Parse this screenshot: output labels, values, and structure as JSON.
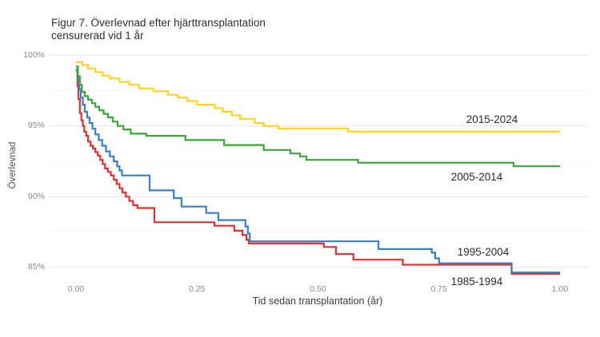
{
  "title": {
    "line1": "Figur 7. Överlevnad efter hjärttransplantation",
    "line2": "censurerad vid 1 år"
  },
  "chart_data": {
    "type": "line",
    "subtype": "kaplan-meier-step",
    "title": "Figur 7. Överlevnad efter hjärttransplantation censurerad vid 1 år",
    "xlabel": "Tid sedan transplantation (år)",
    "ylabel": "Överlevnad",
    "xlim": [
      0,
      1
    ],
    "ylim": [
      84.3,
      100.3
    ],
    "grid": "on",
    "legend_position": "inline-labels-right",
    "xticks": {
      "values": [
        0,
        0.25,
        0.5,
        0.75,
        1.0
      ],
      "labels": [
        "0.00",
        "0.25",
        "0.50",
        "0.75",
        "1.00"
      ]
    },
    "yticks": {
      "values": [
        100,
        95,
        90,
        85
      ],
      "labels": [
        "100%",
        "95%",
        "90%",
        "85%"
      ]
    },
    "minor_gridlines": [
      97.5,
      92.5,
      87.5
    ],
    "colors": {
      "grid_major": "#e6e6e6",
      "grid_minor": "#f4f4f4"
    },
    "series": [
      {
        "name": "1985-1994",
        "color": "#e03131",
        "points": [
          [
            0,
            98.9
          ],
          [
            0.003,
            97.8
          ],
          [
            0.005,
            96.9
          ],
          [
            0.008,
            95.9
          ],
          [
            0.011,
            95.4
          ],
          [
            0.014,
            95.0
          ],
          [
            0.017,
            94.6
          ],
          [
            0.021,
            94.3
          ],
          [
            0.025,
            93.9
          ],
          [
            0.03,
            93.6
          ],
          [
            0.035,
            93.4
          ],
          [
            0.04,
            93.15
          ],
          [
            0.045,
            92.9
          ],
          [
            0.05,
            92.6
          ],
          [
            0.055,
            92.3
          ],
          [
            0.06,
            92.0
          ],
          [
            0.066,
            91.75
          ],
          [
            0.072,
            91.5
          ],
          [
            0.078,
            91.2
          ],
          [
            0.084,
            90.9
          ],
          [
            0.09,
            90.6
          ],
          [
            0.096,
            90.3
          ],
          [
            0.103,
            90.0
          ],
          [
            0.11,
            89.7
          ],
          [
            0.118,
            89.4
          ],
          [
            0.127,
            89.2
          ],
          [
            0.162,
            88.2
          ],
          [
            0.286,
            87.95
          ],
          [
            0.327,
            87.6
          ],
          [
            0.344,
            87.3
          ],
          [
            0.352,
            86.95
          ],
          [
            0.357,
            86.7
          ],
          [
            0.512,
            86.45
          ],
          [
            0.537,
            85.95
          ],
          [
            0.573,
            85.55
          ],
          [
            0.675,
            85.2
          ],
          [
            0.9,
            84.55
          ],
          [
            1.0,
            84.55
          ]
        ]
      },
      {
        "name": "1995-2004",
        "color": "#3a7fc1",
        "points": [
          [
            0,
            99.0
          ],
          [
            0.004,
            98.3
          ],
          [
            0.007,
            97.6
          ],
          [
            0.01,
            97.0
          ],
          [
            0.014,
            96.5
          ],
          [
            0.018,
            96.0
          ],
          [
            0.023,
            95.6
          ],
          [
            0.028,
            95.2
          ],
          [
            0.034,
            94.8
          ],
          [
            0.04,
            94.4
          ],
          [
            0.047,
            94.0
          ],
          [
            0.054,
            93.6
          ],
          [
            0.062,
            93.2
          ],
          [
            0.07,
            92.85
          ],
          [
            0.078,
            92.5
          ],
          [
            0.085,
            92.15
          ],
          [
            0.09,
            91.85
          ],
          [
            0.095,
            91.5
          ],
          [
            0.152,
            90.45
          ],
          [
            0.202,
            89.9
          ],
          [
            0.218,
            89.3
          ],
          [
            0.269,
            88.85
          ],
          [
            0.294,
            88.35
          ],
          [
            0.35,
            87.9
          ],
          [
            0.355,
            87.4
          ],
          [
            0.359,
            86.85
          ],
          [
            0.625,
            86.3
          ],
          [
            0.735,
            86.05
          ],
          [
            0.742,
            85.65
          ],
          [
            0.75,
            85.3
          ],
          [
            0.9,
            84.65
          ],
          [
            1.0,
            84.65
          ]
        ]
      },
      {
        "name": "2005-2014",
        "color": "#3ba43b",
        "points": [
          [
            0,
            99.2
          ],
          [
            0.004,
            98.5
          ],
          [
            0.008,
            97.9
          ],
          [
            0.012,
            97.4
          ],
          [
            0.018,
            97.1
          ],
          [
            0.025,
            96.85
          ],
          [
            0.033,
            96.6
          ],
          [
            0.04,
            96.35
          ],
          [
            0.048,
            96.1
          ],
          [
            0.057,
            95.85
          ],
          [
            0.066,
            95.6
          ],
          [
            0.076,
            95.3
          ],
          [
            0.086,
            95.0
          ],
          [
            0.098,
            94.75
          ],
          [
            0.113,
            94.45
          ],
          [
            0.145,
            94.3
          ],
          [
            0.226,
            94.0
          ],
          [
            0.306,
            93.65
          ],
          [
            0.388,
            93.3
          ],
          [
            0.443,
            93.05
          ],
          [
            0.463,
            92.85
          ],
          [
            0.476,
            92.6
          ],
          [
            0.583,
            92.4
          ],
          [
            0.904,
            92.15
          ],
          [
            1.0,
            92.15
          ]
        ]
      },
      {
        "name": "2015-2024",
        "color": "#ffd51e",
        "points": [
          [
            0,
            99.5
          ],
          [
            0.013,
            99.3
          ],
          [
            0.025,
            99.05
          ],
          [
            0.04,
            98.8
          ],
          [
            0.055,
            98.55
          ],
          [
            0.07,
            98.35
          ],
          [
            0.09,
            98.1
          ],
          [
            0.11,
            97.9
          ],
          [
            0.13,
            97.65
          ],
          [
            0.16,
            97.45
          ],
          [
            0.19,
            97.2
          ],
          [
            0.21,
            97.0
          ],
          [
            0.23,
            96.75
          ],
          [
            0.25,
            96.5
          ],
          [
            0.287,
            96.25
          ],
          [
            0.303,
            96.0
          ],
          [
            0.322,
            95.75
          ],
          [
            0.339,
            95.5
          ],
          [
            0.369,
            95.2
          ],
          [
            0.388,
            95.0
          ],
          [
            0.418,
            94.82
          ],
          [
            0.562,
            94.6
          ],
          [
            1.0,
            94.6
          ]
        ]
      }
    ]
  }
}
